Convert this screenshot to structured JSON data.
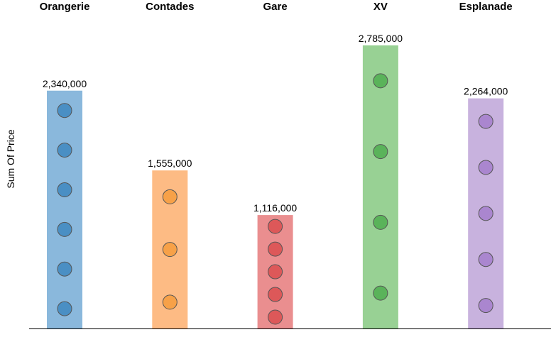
{
  "chart_data": {
    "type": "bar",
    "title": "",
    "xlabel": "",
    "ylabel": "Sum Of Price",
    "ylim": [
      0,
      2785000
    ],
    "grid": false,
    "legend": "none",
    "categories": [
      "Orangerie",
      "Contades",
      "Gare",
      "XV",
      "Esplanade"
    ],
    "values": [
      2340000,
      1555000,
      1116000,
      2785000,
      2264000
    ],
    "value_labels": [
      "2,340,000",
      "1,555,000",
      "1,116,000",
      "2,785,000",
      "2,264,000"
    ],
    "dot_counts": [
      6,
      3,
      5,
      4,
      5
    ],
    "colors": {
      "bars": [
        "#8ab8dc",
        "#fdbb84",
        "#ea8e8f",
        "#98d194",
        "#c8b2de"
      ],
      "dots": [
        "#4a8fc4",
        "#f7a148",
        "#dd5859",
        "#5ab35a",
        "#aa86cf"
      ],
      "dot_stroke": "#555555",
      "axis": "#000000"
    }
  }
}
